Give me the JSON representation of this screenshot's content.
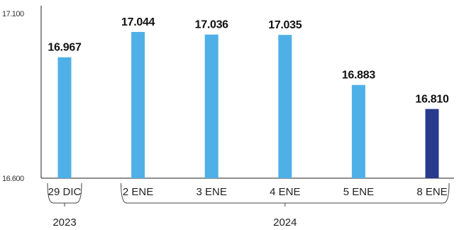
{
  "chart_data": {
    "type": "bar",
    "categories": [
      "29 DIC",
      "2 ENE",
      "3 ENE",
      "4 ENE",
      "5 ENE",
      "8 ENE"
    ],
    "values": [
      16967,
      17044,
      17036,
      17035,
      16883,
      16810
    ],
    "value_labels": [
      "16.967",
      "17.044",
      "17.036",
      "17.035",
      "16.883",
      "16.810"
    ],
    "ylim": [
      16600,
      17100
    ],
    "y_ticks": [
      16600,
      17100
    ],
    "y_tick_labels": [
      "16.600",
      "17.100"
    ],
    "year_groups": [
      {
        "label": "2023",
        "from": 0,
        "to": 0
      },
      {
        "label": "2024",
        "from": 1,
        "to": 5
      }
    ],
    "colors": {
      "bar": "#4fb0e8",
      "highlight": "#283a8c",
      "axis": "#222222"
    },
    "highlight_index": 5,
    "grid": false
  }
}
